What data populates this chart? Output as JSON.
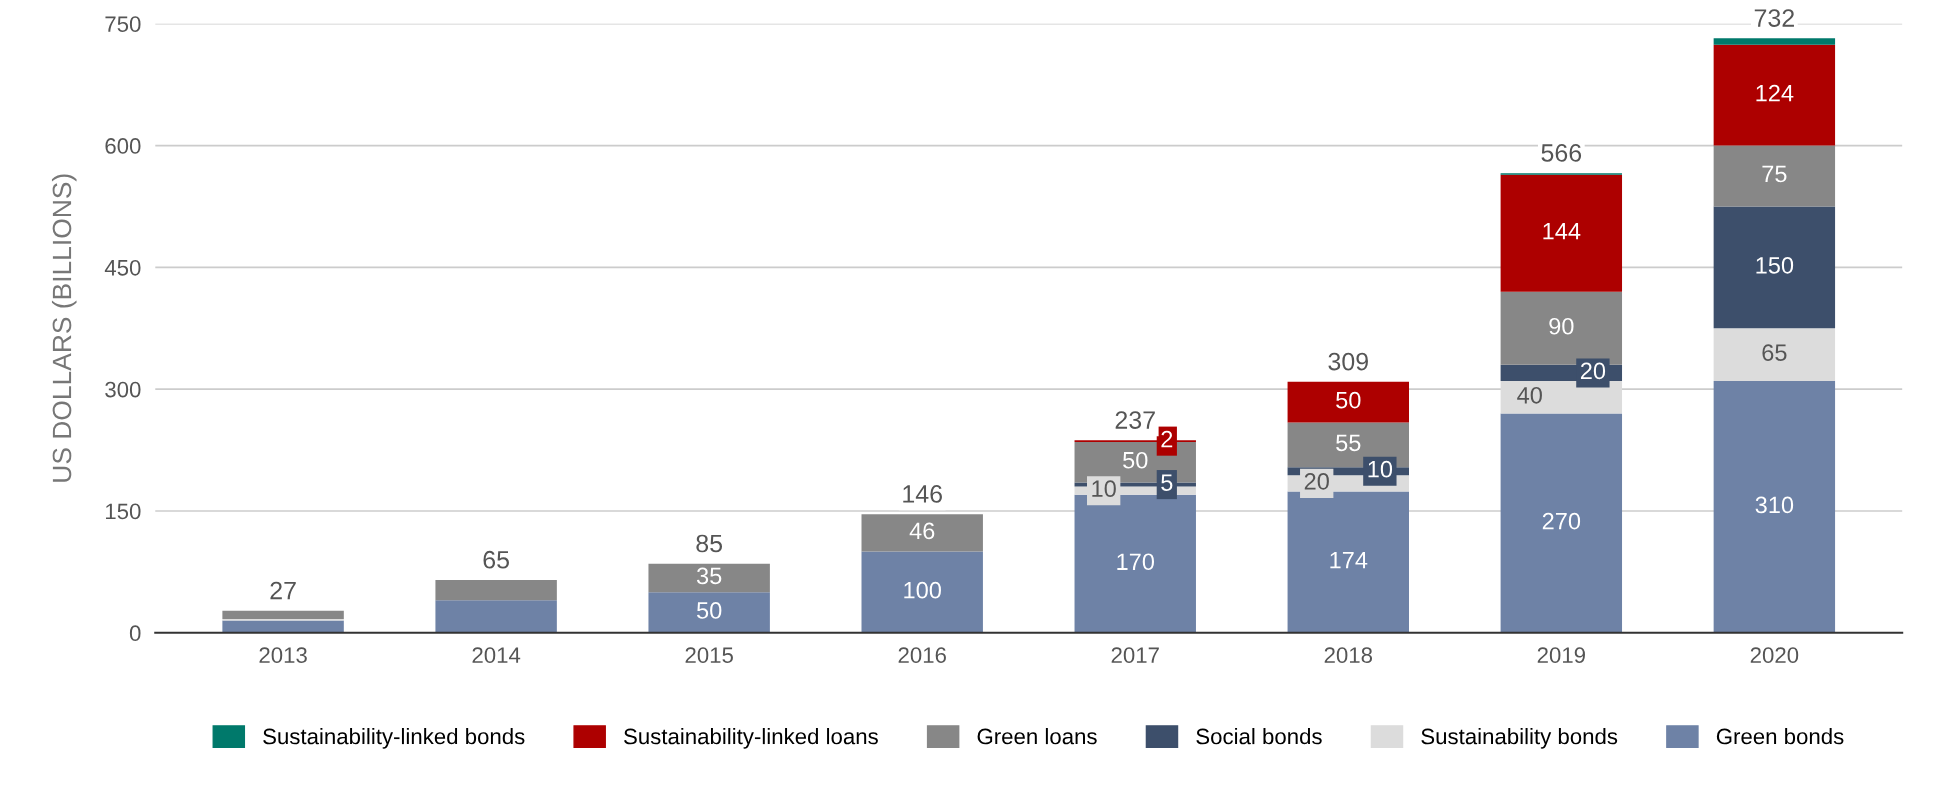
{
  "chart_data": {
    "type": "bar",
    "stacked": true,
    "ylabel": "US DOLLARS (BILLIONS)",
    "categories": [
      "2013",
      "2014",
      "2015",
      "2016",
      "2017",
      "2018",
      "2019",
      "2020"
    ],
    "series": [
      {
        "name": "Green bonds",
        "color": "#6e82a6",
        "values": [
          15,
          40,
          50,
          100,
          170,
          174,
          270,
          310
        ],
        "value_labels": [
          null,
          null,
          "50",
          "100",
          "170",
          "174",
          "270",
          "310"
        ]
      },
      {
        "name": "Sustainability bonds",
        "color": "#dcdcdc",
        "values": [
          2,
          0,
          0,
          0,
          10,
          20,
          40,
          65
        ],
        "value_labels": [
          null,
          null,
          null,
          null,
          "10",
          "20",
          "40",
          "65"
        ]
      },
      {
        "name": "Social bonds",
        "color": "#3d4f6b",
        "values": [
          0,
          0,
          0,
          0,
          5,
          10,
          20,
          150
        ],
        "value_labels": [
          null,
          null,
          null,
          null,
          "5",
          "10",
          "20",
          "150"
        ]
      },
      {
        "name": "Green loans",
        "color": "#878787",
        "values": [
          10,
          25,
          35,
          46,
          50,
          55,
          90,
          75
        ],
        "value_labels": [
          null,
          null,
          "35",
          "46",
          "50",
          "55",
          "90",
          "75"
        ]
      },
      {
        "name": "Sustainability-linked loans",
        "color": "#ad0000",
        "values": [
          0,
          0,
          0,
          0,
          2,
          50,
          144,
          124
        ],
        "value_labels": [
          null,
          null,
          null,
          null,
          "2",
          "50",
          "144",
          "124"
        ]
      },
      {
        "name": "Sustainability-linked bonds",
        "color": "#00796b",
        "values": [
          0,
          0,
          0,
          0,
          0,
          0,
          2,
          8
        ],
        "value_labels": [
          null,
          null,
          null,
          null,
          null,
          null,
          null,
          null
        ]
      }
    ],
    "totals": [
      "27",
      "65",
      "85",
      "146",
      "237",
      "309",
      "566",
      "732"
    ],
    "ylim": [
      0,
      750
    ],
    "yticks": [
      0,
      150,
      300,
      450,
      600,
      750
    ],
    "grid": "y",
    "legend": "bottom"
  }
}
